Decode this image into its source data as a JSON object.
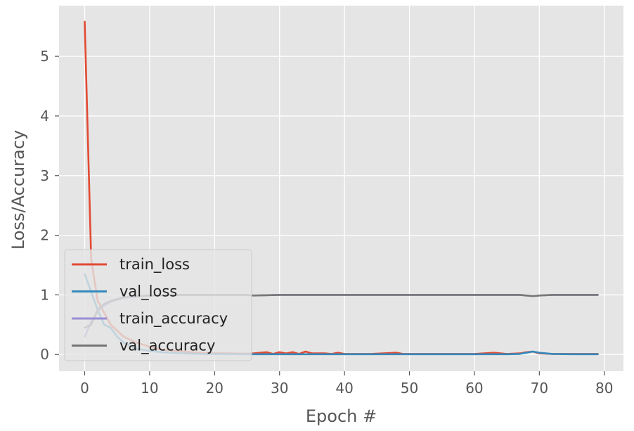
{
  "chart_data": {
    "type": "line",
    "title": "",
    "xlabel": "Epoch #",
    "ylabel": "Loss/Accuracy",
    "xlim": [
      -3.95,
      82.95
    ],
    "ylim": [
      -0.28,
      5.85
    ],
    "xticks": [
      0,
      10,
      20,
      30,
      40,
      50,
      60,
      70,
      80
    ],
    "yticks": [
      0,
      1,
      2,
      3,
      4,
      5
    ],
    "xtick_labels": [
      "0",
      "10",
      "20",
      "30",
      "40",
      "50",
      "60",
      "70",
      "80"
    ],
    "ytick_labels": [
      "0",
      "1",
      "2",
      "3",
      "4",
      "5"
    ],
    "grid": true,
    "style": "ggplot",
    "legend_position": "lower-left",
    "series": [
      {
        "name": "train_loss",
        "color": "#E24A33",
        "x": [
          0,
          1,
          2,
          3,
          4,
          5,
          6,
          8,
          10,
          12,
          15,
          18,
          20,
          22,
          25,
          26,
          28,
          29,
          30,
          31,
          32,
          33,
          34,
          35,
          37,
          38,
          39,
          40,
          44,
          48,
          49,
          52,
          56,
          60,
          63,
          65,
          67,
          68,
          69,
          70,
          72,
          75,
          79
        ],
        "y": [
          5.58,
          1.6,
          0.9,
          0.7,
          0.5,
          0.4,
          0.3,
          0.2,
          0.13,
          0.08,
          0.05,
          0.03,
          0.02,
          0.02,
          0.015,
          0.02,
          0.04,
          0.01,
          0.04,
          0.02,
          0.04,
          0.01,
          0.05,
          0.02,
          0.02,
          0.01,
          0.03,
          0.01,
          0.01,
          0.03,
          0.01,
          0.01,
          0.01,
          0.01,
          0.03,
          0.01,
          0.02,
          0.04,
          0.05,
          0.02,
          0.01,
          0.01,
          0.01
        ]
      },
      {
        "name": "val_loss",
        "color": "#348ABD",
        "x": [
          0,
          1,
          2,
          3,
          4,
          5,
          6,
          8,
          10,
          12,
          15,
          18,
          20,
          25,
          30,
          35,
          40,
          45,
          50,
          55,
          60,
          65,
          67,
          68,
          69,
          70,
          72,
          75,
          79
        ],
        "y": [
          1.35,
          1.05,
          0.75,
          0.5,
          0.45,
          0.3,
          0.2,
          0.1,
          0.06,
          0.04,
          0.02,
          0.01,
          0.01,
          0.005,
          0.005,
          0.005,
          0.005,
          0.005,
          0.005,
          0.005,
          0.005,
          0.005,
          0.01,
          0.03,
          0.05,
          0.03,
          0.01,
          0.005,
          0.005
        ]
      },
      {
        "name": "train_accuracy",
        "color": "#988ED5",
        "x": [
          0,
          1,
          2,
          3,
          4,
          5,
          6,
          8,
          10,
          15,
          20,
          25,
          26,
          30,
          40,
          50,
          60,
          67,
          68,
          69,
          70,
          72,
          79
        ],
        "y": [
          0.3,
          0.55,
          0.72,
          0.82,
          0.88,
          0.92,
          0.95,
          0.97,
          0.99,
          1.0,
          1.0,
          1.0,
          0.99,
          1.0,
          1.0,
          1.0,
          1.0,
          1.0,
          0.99,
          0.98,
          0.99,
          1.0,
          1.0
        ]
      },
      {
        "name": "val_accuracy",
        "color": "#777777",
        "x": [
          0,
          1,
          2,
          3,
          4,
          5,
          6,
          8,
          10,
          15,
          20,
          25,
          26,
          30,
          35,
          40,
          45,
          50,
          55,
          60,
          65,
          67,
          68,
          69,
          70,
          72,
          79
        ],
        "y": [
          0.45,
          0.5,
          0.75,
          0.85,
          0.9,
          0.93,
          0.96,
          0.98,
          0.99,
          1.0,
          1.0,
          1.0,
          0.99,
          1.0,
          1.0,
          1.0,
          1.0,
          1.0,
          1.0,
          1.0,
          1.0,
          1.0,
          0.99,
          0.98,
          0.99,
          1.0,
          1.0
        ]
      }
    ]
  }
}
